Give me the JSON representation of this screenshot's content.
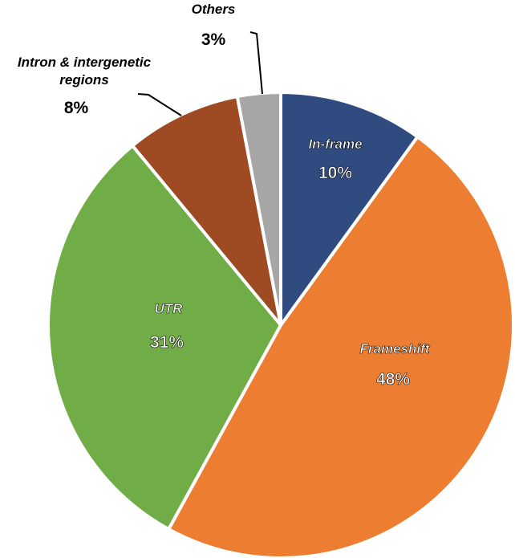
{
  "chart_data": {
    "type": "pie",
    "categories": [
      "In-frame",
      "Frameshift",
      "UTR",
      "Intron & intergenetic regions",
      "Others"
    ],
    "values": [
      10,
      48,
      31,
      8,
      3
    ],
    "value_labels": [
      "10%",
      "48%",
      "31%",
      "8%",
      "3%"
    ],
    "colors": [
      "#2f4b7f",
      "#ed7d31",
      "#70ad47",
      "#9e4a23",
      "#a6a6a6"
    ]
  }
}
